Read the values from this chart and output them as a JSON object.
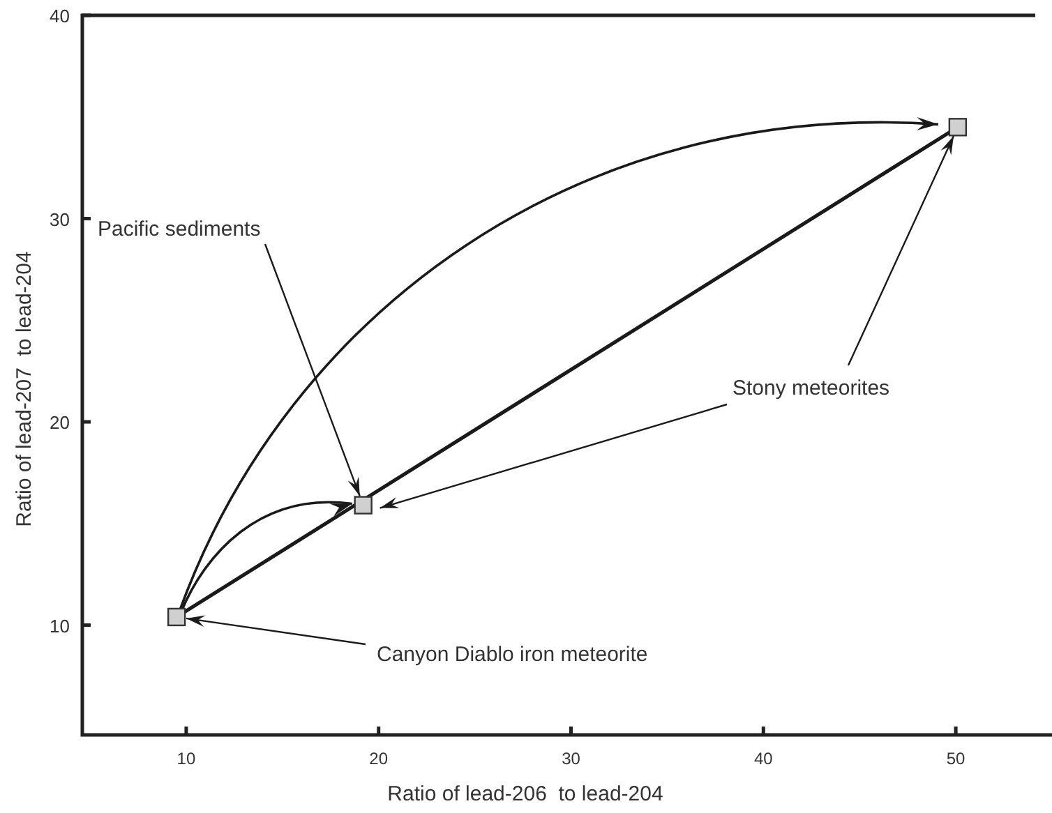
{
  "chart_data": {
    "type": "scatter",
    "xlabel": "Ratio of lead-206  to lead-204",
    "ylabel": "Ratio of lead-207  to lead-204",
    "xlim": [
      4.6,
      55
    ],
    "ylim": [
      4.6,
      40
    ],
    "xticks": [
      10,
      20,
      30,
      40,
      50
    ],
    "yticks": [
      10,
      20,
      30,
      40
    ],
    "grid": false,
    "series": [
      {
        "type": "line",
        "color": "#1a1a1a",
        "x": [
          9.5,
          50.1
        ],
        "values": [
          10.4,
          34.5
        ],
        "line_style": "solid",
        "marker": "none"
      },
      {
        "color": "#d0d0d0",
        "x": [
          9.5,
          19.2,
          50.1
        ],
        "values": [
          10.4,
          15.9,
          34.5
        ],
        "marker": "square"
      }
    ],
    "annotations": [
      {
        "text": "Pacific sediments",
        "x": 19.2,
        "y": 15.9
      },
      {
        "text": "Stony meteorites",
        "x": 50.1,
        "y": 34.5
      },
      {
        "text": "Canyon Diablo iron meteorite",
        "x": 9.5,
        "y": 10.4
      }
    ]
  }
}
